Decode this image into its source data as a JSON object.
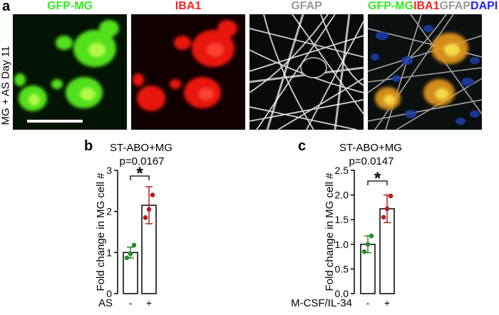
{
  "panel_a": {
    "letter": "a",
    "side_label": "MG + AS Day 11",
    "titles": [
      {
        "text": "GFP-MG",
        "color": "#33ee22"
      },
      {
        "text": "IBA1",
        "color": "#ff2222"
      },
      {
        "text": "GFAP",
        "color": "#999999"
      }
    ],
    "merge_title": [
      {
        "text": "GFP-MG",
        "color": "#33ee22"
      },
      {
        "text": "IBA1",
        "color": "#ff2222"
      },
      {
        "text": "GFAP",
        "color": "#999999"
      },
      {
        "text": "DAPI",
        "color": "#2222ee"
      }
    ]
  },
  "panel_b": {
    "letter": "b",
    "title": "ST-ABO+MG",
    "pvalue": "p=0.0167",
    "star": "*"
  },
  "panel_c": {
    "letter": "c",
    "title": "ST-ABO+MG",
    "pvalue": "p=0.0147",
    "star": "*"
  },
  "chart_data": [
    {
      "type": "bar",
      "title": "ST-ABO+MG",
      "annotation": "p=0.0167",
      "ylabel": "Fold change in MG cell #",
      "xlabel": "AS",
      "categories": [
        "-",
        "+"
      ],
      "values": [
        1.0,
        2.15
      ],
      "errors": [
        0.13,
        0.45
      ],
      "points": [
        [
          0.87,
          0.97,
          1.18
        ],
        [
          1.85,
          2.05,
          2.4
        ]
      ],
      "point_colors": [
        "#2a8a2a",
        "#b02020"
      ],
      "yticks": [
        "0",
        "1",
        "2",
        "3"
      ],
      "ylim": [
        0,
        3
      ]
    },
    {
      "type": "bar",
      "title": "ST-ABO+MG",
      "annotation": "p=0.0147",
      "ylabel": "Fold change in MG cell #",
      "xlabel": "M-CSF/IL-34",
      "categories": [
        "-",
        "+"
      ],
      "values": [
        1.0,
        1.72
      ],
      "errors": [
        0.17,
        0.28
      ],
      "points": [
        [
          0.85,
          1.0,
          1.17
        ],
        [
          1.55,
          1.72,
          1.98
        ]
      ],
      "point_colors": [
        "#2a8a2a",
        "#b02020"
      ],
      "yticks": [
        "0.0",
        "0.5",
        "1.0",
        "1.5",
        "2.0",
        "2.5"
      ],
      "ylim": [
        0,
        2.5
      ]
    }
  ]
}
